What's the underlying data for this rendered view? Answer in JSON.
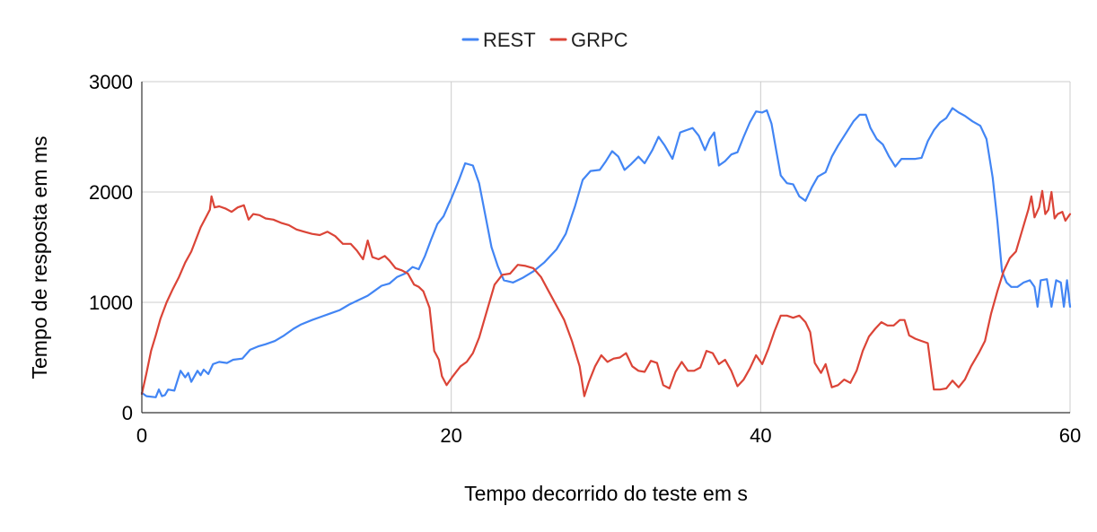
{
  "chart_data": {
    "type": "line",
    "title": "",
    "xlabel": "Tempo decorrido do teste em s",
    "ylabel": "Tempo de resposta em ms",
    "xlim": [
      0,
      60
    ],
    "ylim": [
      0,
      3000
    ],
    "x_ticks": [
      0,
      20,
      40,
      60
    ],
    "y_ticks": [
      0,
      1000,
      2000,
      3000
    ],
    "x_tick_labels": [
      "0",
      "20",
      "40",
      "60"
    ],
    "y_tick_labels": [
      "0",
      "1000",
      "2000",
      "3000"
    ],
    "grid": true,
    "legend": "top-center",
    "series": [
      {
        "name": "REST",
        "color": "#4285f4",
        "points": [
          [
            0,
            180
          ],
          [
            0.3,
            150
          ],
          [
            0.9,
            140
          ],
          [
            1.1,
            210
          ],
          [
            1.3,
            150
          ],
          [
            1.5,
            160
          ],
          [
            1.7,
            210
          ],
          [
            2.1,
            200
          ],
          [
            2.5,
            380
          ],
          [
            2.8,
            320
          ],
          [
            3.0,
            360
          ],
          [
            3.2,
            280
          ],
          [
            3.6,
            380
          ],
          [
            3.8,
            340
          ],
          [
            4.0,
            390
          ],
          [
            4.3,
            350
          ],
          [
            4.6,
            440
          ],
          [
            5.0,
            460
          ],
          [
            5.5,
            450
          ],
          [
            5.9,
            480
          ],
          [
            6.5,
            490
          ],
          [
            7.0,
            570
          ],
          [
            7.5,
            600
          ],
          [
            8.0,
            620
          ],
          [
            8.6,
            650
          ],
          [
            9.2,
            700
          ],
          [
            9.8,
            760
          ],
          [
            10.3,
            800
          ],
          [
            11.0,
            840
          ],
          [
            11.6,
            870
          ],
          [
            12.2,
            900
          ],
          [
            12.8,
            930
          ],
          [
            13.4,
            980
          ],
          [
            14.0,
            1020
          ],
          [
            14.6,
            1060
          ],
          [
            15.0,
            1100
          ],
          [
            15.5,
            1150
          ],
          [
            16.0,
            1170
          ],
          [
            16.5,
            1230
          ],
          [
            17.0,
            1260
          ],
          [
            17.5,
            1320
          ],
          [
            17.9,
            1300
          ],
          [
            18.3,
            1420
          ],
          [
            18.7,
            1570
          ],
          [
            19.1,
            1710
          ],
          [
            19.5,
            1780
          ],
          [
            20.0,
            1940
          ],
          [
            20.5,
            2110
          ],
          [
            20.9,
            2260
          ],
          [
            21.4,
            2240
          ],
          [
            21.8,
            2080
          ],
          [
            22.2,
            1790
          ],
          [
            22.6,
            1500
          ],
          [
            23.0,
            1330
          ],
          [
            23.4,
            1200
          ],
          [
            24.0,
            1180
          ],
          [
            24.6,
            1220
          ],
          [
            25.3,
            1280
          ],
          [
            26.0,
            1360
          ],
          [
            26.8,
            1480
          ],
          [
            27.4,
            1620
          ],
          [
            28.0,
            1870
          ],
          [
            28.5,
            2110
          ],
          [
            29.0,
            2190
          ],
          [
            29.6,
            2200
          ],
          [
            30.0,
            2280
          ],
          [
            30.4,
            2370
          ],
          [
            30.8,
            2320
          ],
          [
            31.2,
            2200
          ],
          [
            31.6,
            2250
          ],
          [
            32.1,
            2320
          ],
          [
            32.5,
            2260
          ],
          [
            33.0,
            2380
          ],
          [
            33.4,
            2500
          ],
          [
            33.8,
            2420
          ],
          [
            34.3,
            2300
          ],
          [
            34.8,
            2540
          ],
          [
            35.2,
            2560
          ],
          [
            35.6,
            2580
          ],
          [
            36.0,
            2510
          ],
          [
            36.4,
            2380
          ],
          [
            36.7,
            2480
          ],
          [
            37.0,
            2540
          ],
          [
            37.3,
            2240
          ],
          [
            37.7,
            2280
          ],
          [
            38.1,
            2340
          ],
          [
            38.5,
            2360
          ],
          [
            38.9,
            2500
          ],
          [
            39.3,
            2630
          ],
          [
            39.7,
            2730
          ],
          [
            40.1,
            2720
          ],
          [
            40.4,
            2740
          ],
          [
            40.7,
            2620
          ],
          [
            41.0,
            2380
          ],
          [
            41.3,
            2150
          ],
          [
            41.7,
            2080
          ],
          [
            42.1,
            2070
          ],
          [
            42.5,
            1960
          ],
          [
            42.9,
            1920
          ],
          [
            43.3,
            2040
          ],
          [
            43.7,
            2140
          ],
          [
            44.2,
            2180
          ],
          [
            44.6,
            2320
          ],
          [
            45.0,
            2420
          ],
          [
            45.5,
            2530
          ],
          [
            46.0,
            2640
          ],
          [
            46.4,
            2700
          ],
          [
            46.8,
            2700
          ],
          [
            47.1,
            2580
          ],
          [
            47.5,
            2480
          ],
          [
            47.9,
            2430
          ],
          [
            48.3,
            2320
          ],
          [
            48.7,
            2230
          ],
          [
            49.1,
            2300
          ],
          [
            49.5,
            2300
          ],
          [
            50.0,
            2300
          ],
          [
            50.4,
            2310
          ],
          [
            50.8,
            2460
          ],
          [
            51.2,
            2560
          ],
          [
            51.6,
            2630
          ],
          [
            52.0,
            2670
          ],
          [
            52.4,
            2760
          ],
          [
            52.8,
            2720
          ],
          [
            53.2,
            2690
          ],
          [
            53.7,
            2640
          ],
          [
            54.2,
            2600
          ],
          [
            54.6,
            2480
          ],
          [
            55.0,
            2130
          ],
          [
            55.3,
            1740
          ],
          [
            55.6,
            1280
          ],
          [
            55.9,
            1180
          ],
          [
            56.2,
            1140
          ],
          [
            56.6,
            1140
          ],
          [
            57.0,
            1180
          ],
          [
            57.4,
            1200
          ],
          [
            57.7,
            1140
          ],
          [
            57.9,
            960
          ],
          [
            58.1,
            1200
          ],
          [
            58.5,
            1210
          ],
          [
            58.8,
            960
          ],
          [
            59.1,
            1200
          ],
          [
            59.4,
            1180
          ],
          [
            59.6,
            960
          ],
          [
            59.8,
            1200
          ],
          [
            60.0,
            960
          ]
        ]
      },
      {
        "name": "GRPC",
        "color": "#db4437",
        "points": [
          [
            0,
            170
          ],
          [
            0.3,
            360
          ],
          [
            0.6,
            560
          ],
          [
            0.9,
            700
          ],
          [
            1.2,
            850
          ],
          [
            1.6,
            1000
          ],
          [
            2.0,
            1120
          ],
          [
            2.4,
            1230
          ],
          [
            2.8,
            1360
          ],
          [
            3.2,
            1460
          ],
          [
            3.5,
            1570
          ],
          [
            3.8,
            1680
          ],
          [
            4.1,
            1760
          ],
          [
            4.4,
            1840
          ],
          [
            4.5,
            1960
          ],
          [
            4.7,
            1860
          ],
          [
            5.0,
            1870
          ],
          [
            5.4,
            1850
          ],
          [
            5.8,
            1820
          ],
          [
            6.2,
            1860
          ],
          [
            6.6,
            1880
          ],
          [
            6.9,
            1750
          ],
          [
            7.2,
            1800
          ],
          [
            7.6,
            1790
          ],
          [
            8.0,
            1760
          ],
          [
            8.5,
            1750
          ],
          [
            9.0,
            1720
          ],
          [
            9.5,
            1700
          ],
          [
            10.0,
            1660
          ],
          [
            10.5,
            1640
          ],
          [
            11.0,
            1620
          ],
          [
            11.5,
            1610
          ],
          [
            12.0,
            1640
          ],
          [
            12.5,
            1600
          ],
          [
            13.0,
            1530
          ],
          [
            13.5,
            1530
          ],
          [
            13.9,
            1470
          ],
          [
            14.3,
            1390
          ],
          [
            14.6,
            1560
          ],
          [
            14.9,
            1410
          ],
          [
            15.3,
            1390
          ],
          [
            15.7,
            1420
          ],
          [
            16.0,
            1380
          ],
          [
            16.4,
            1310
          ],
          [
            16.8,
            1290
          ],
          [
            17.2,
            1260
          ],
          [
            17.6,
            1160
          ],
          [
            17.9,
            1140
          ],
          [
            18.2,
            1100
          ],
          [
            18.6,
            950
          ],
          [
            18.9,
            560
          ],
          [
            19.2,
            480
          ],
          [
            19.4,
            330
          ],
          [
            19.7,
            250
          ],
          [
            20.1,
            330
          ],
          [
            20.6,
            420
          ],
          [
            21.0,
            460
          ],
          [
            21.4,
            540
          ],
          [
            21.8,
            680
          ],
          [
            22.3,
            920
          ],
          [
            22.8,
            1160
          ],
          [
            23.3,
            1250
          ],
          [
            23.8,
            1260
          ],
          [
            24.3,
            1340
          ],
          [
            24.8,
            1330
          ],
          [
            25.3,
            1310
          ],
          [
            25.8,
            1230
          ],
          [
            26.3,
            1100
          ],
          [
            26.8,
            970
          ],
          [
            27.3,
            840
          ],
          [
            27.8,
            650
          ],
          [
            28.3,
            420
          ],
          [
            28.6,
            150
          ],
          [
            28.9,
            280
          ],
          [
            29.3,
            420
          ],
          [
            29.7,
            520
          ],
          [
            30.1,
            460
          ],
          [
            30.5,
            490
          ],
          [
            30.9,
            500
          ],
          [
            31.3,
            540
          ],
          [
            31.7,
            420
          ],
          [
            32.1,
            380
          ],
          [
            32.5,
            370
          ],
          [
            32.9,
            470
          ],
          [
            33.3,
            450
          ],
          [
            33.7,
            250
          ],
          [
            34.1,
            220
          ],
          [
            34.5,
            370
          ],
          [
            34.9,
            460
          ],
          [
            35.3,
            380
          ],
          [
            35.7,
            380
          ],
          [
            36.1,
            410
          ],
          [
            36.5,
            560
          ],
          [
            36.9,
            540
          ],
          [
            37.3,
            440
          ],
          [
            37.7,
            480
          ],
          [
            38.1,
            380
          ],
          [
            38.5,
            240
          ],
          [
            38.9,
            300
          ],
          [
            39.3,
            400
          ],
          [
            39.7,
            520
          ],
          [
            40.1,
            440
          ],
          [
            40.5,
            580
          ],
          [
            40.9,
            740
          ],
          [
            41.3,
            880
          ],
          [
            41.7,
            880
          ],
          [
            42.1,
            860
          ],
          [
            42.5,
            880
          ],
          [
            42.9,
            820
          ],
          [
            43.2,
            730
          ],
          [
            43.5,
            450
          ],
          [
            43.9,
            360
          ],
          [
            44.2,
            440
          ],
          [
            44.6,
            230
          ],
          [
            45.0,
            250
          ],
          [
            45.4,
            300
          ],
          [
            45.8,
            270
          ],
          [
            46.2,
            380
          ],
          [
            46.6,
            560
          ],
          [
            47.0,
            690
          ],
          [
            47.4,
            760
          ],
          [
            47.8,
            820
          ],
          [
            48.2,
            790
          ],
          [
            48.6,
            790
          ],
          [
            49.0,
            840
          ],
          [
            49.3,
            840
          ],
          [
            49.6,
            700
          ],
          [
            50.0,
            670
          ],
          [
            50.4,
            650
          ],
          [
            50.8,
            630
          ],
          [
            51.2,
            210
          ],
          [
            51.6,
            210
          ],
          [
            52.0,
            220
          ],
          [
            52.4,
            290
          ],
          [
            52.8,
            230
          ],
          [
            53.2,
            300
          ],
          [
            53.6,
            420
          ],
          [
            54.1,
            540
          ],
          [
            54.5,
            650
          ],
          [
            54.9,
            900
          ],
          [
            55.3,
            1100
          ],
          [
            55.7,
            1280
          ],
          [
            56.1,
            1400
          ],
          [
            56.5,
            1460
          ],
          [
            56.9,
            1650
          ],
          [
            57.3,
            1840
          ],
          [
            57.5,
            1960
          ],
          [
            57.7,
            1770
          ],
          [
            58.0,
            1860
          ],
          [
            58.2,
            2010
          ],
          [
            58.4,
            1800
          ],
          [
            58.6,
            1840
          ],
          [
            58.8,
            2000
          ],
          [
            59.0,
            1760
          ],
          [
            59.2,
            1800
          ],
          [
            59.5,
            1820
          ],
          [
            59.7,
            1740
          ],
          [
            60.0,
            1800
          ]
        ]
      }
    ]
  }
}
